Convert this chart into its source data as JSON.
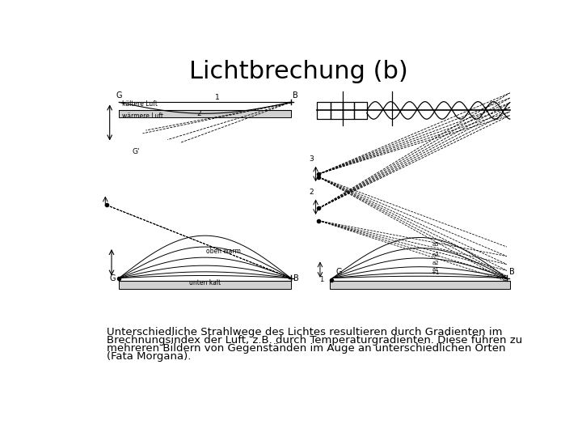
{
  "title": "Lichtbrechung (b)",
  "title_fontsize": 22,
  "caption_lines": [
    "Unterschiedliche Strahlwege des Lichtes resultieren durch Gradienten im",
    "Brechnungsindex der Luft, z.B. durch Temperaturgradienten. Diese führen zu",
    "mehreren Bildern von Gegenständen im Auge an unterschiedlichen Orten",
    "(Fata Morgana)."
  ],
  "caption_fontsize": 9.5,
  "bg_color": "#ffffff",
  "line_color": "#000000",
  "gray_fill": "#d0d0d0"
}
